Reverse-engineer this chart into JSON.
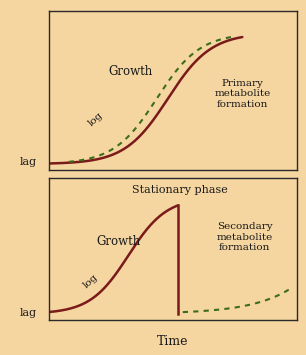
{
  "background_color": "#f5d5a0",
  "border_color": "#2a2a2a",
  "line_color": "#7a1a1a",
  "dashed_color": "#3a6e1a",
  "text_color": "#1a1a1a",
  "fig_bg": "#f5d5a0",
  "top_panel": {
    "growth_label": "Growth",
    "log_label": "log",
    "metabolite_label": "Primary\nmetabolite\nformation",
    "lag_label": "lag"
  },
  "bottom_panel": {
    "growth_label": "Growth",
    "log_label": "log",
    "stationary_label": "Stationary phase",
    "metabolite_label": "Secondary\nmetabolite\nformation",
    "lag_label": "lag"
  },
  "xlabel": "Time"
}
